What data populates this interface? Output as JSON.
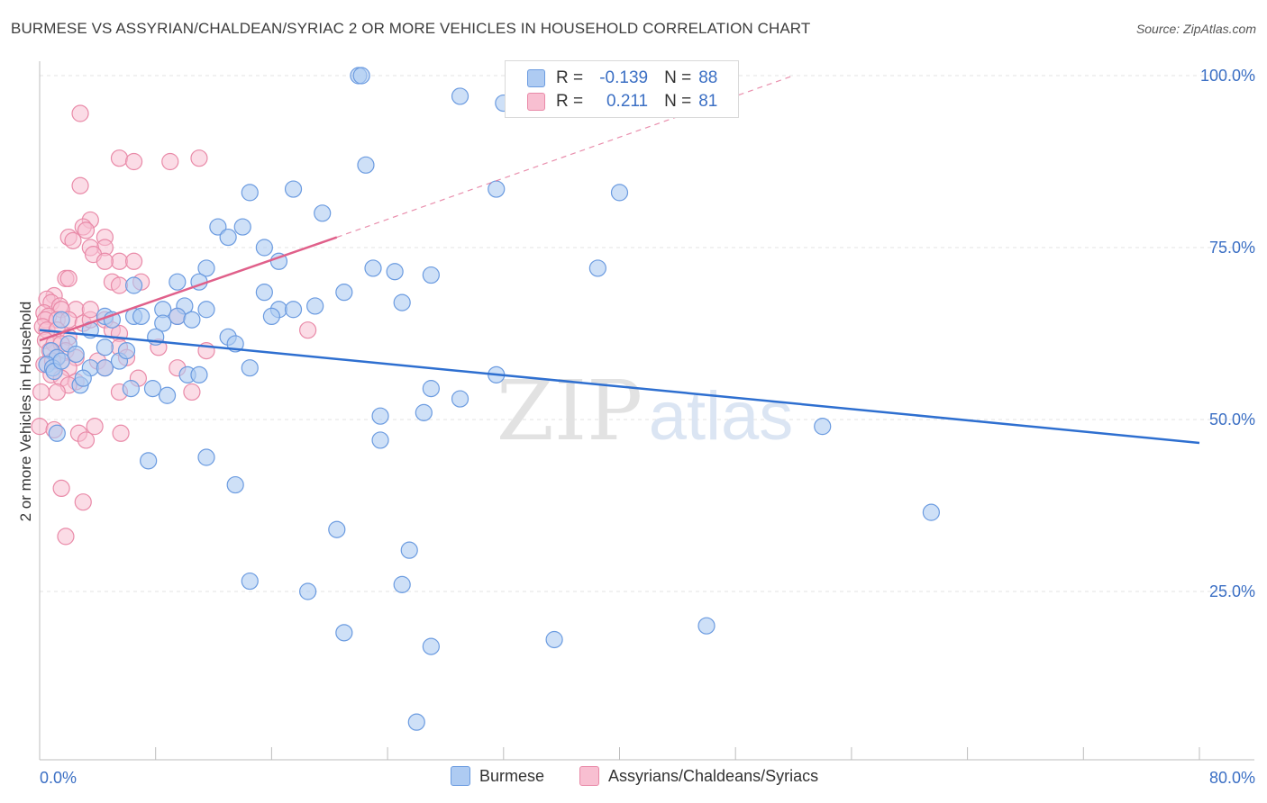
{
  "header": {
    "title": "BURMESE VS ASSYRIAN/CHALDEAN/SYRIAC 2 OR MORE VEHICLES IN HOUSEHOLD CORRELATION CHART",
    "source": "Source: ZipAtlas.com"
  },
  "watermark": {
    "zip": "ZIP",
    "atlas": "atlas"
  },
  "legend": {
    "r_label": "R =",
    "n_label": "N =",
    "burmese": {
      "r": "-0.139",
      "n": "88"
    },
    "assyrian": {
      "r": "0.211",
      "n": "81"
    }
  },
  "colors": {
    "burmese_fill": "#aecbf2",
    "burmese_stroke": "#6b9be0",
    "burmese_line": "#2e6fd0",
    "assyrian_fill": "#f8bfd1",
    "assyrian_stroke": "#e98aa8",
    "assyrian_line": "#e0608a",
    "axis_text": "#3b6fc4",
    "grid": "#e3e3e3"
  },
  "chart_data": {
    "type": "scatter",
    "title": "BURMESE VS ASSYRIAN/CHALDEAN/SYRIAC 2 OR MORE VEHICLES IN HOUSEHOLD CORRELATION CHART",
    "xlabel": "",
    "ylabel": "2 or more Vehicles in Household",
    "xlim": [
      0,
      80
    ],
    "ylim": [
      0,
      102
    ],
    "x_tick_labels": [
      "0.0%",
      "80.0%"
    ],
    "y_ticks": [
      25,
      50,
      75,
      100
    ],
    "y_tick_labels": [
      "25.0%",
      "50.0%",
      "75.0%",
      "100.0%"
    ],
    "grid": true,
    "series": [
      {
        "name": "Burmese",
        "r": -0.139,
        "n": 88,
        "trend": {
          "x": [
            0,
            80
          ],
          "y": [
            63.0,
            46.6
          ]
        },
        "points": [
          [
            22.0,
            100.0
          ],
          [
            22.2,
            100.0
          ],
          [
            29.0,
            97.0
          ],
          [
            32.0,
            96.0
          ],
          [
            22.5,
            87.0
          ],
          [
            31.5,
            83.5
          ],
          [
            14.5,
            83.0
          ],
          [
            17.5,
            83.5
          ],
          [
            40.0,
            83.0
          ],
          [
            19.5,
            80.0
          ],
          [
            12.3,
            78.0
          ],
          [
            14.0,
            78.0
          ],
          [
            13.0,
            76.5
          ],
          [
            15.5,
            75.0
          ],
          [
            16.5,
            73.0
          ],
          [
            11.5,
            72.0
          ],
          [
            23.0,
            72.0
          ],
          [
            24.5,
            71.5
          ],
          [
            27.0,
            71.0
          ],
          [
            38.5,
            72.0
          ],
          [
            6.5,
            69.5
          ],
          [
            9.5,
            70.0
          ],
          [
            11.0,
            70.0
          ],
          [
            15.5,
            68.5
          ],
          [
            21.0,
            68.5
          ],
          [
            19.0,
            66.5
          ],
          [
            25.0,
            67.0
          ],
          [
            8.5,
            66.0
          ],
          [
            10.0,
            66.5
          ],
          [
            11.5,
            66.0
          ],
          [
            16.5,
            66.0
          ],
          [
            17.5,
            66.0
          ],
          [
            6.5,
            65.0
          ],
          [
            7.0,
            65.0
          ],
          [
            9.5,
            65.0
          ],
          [
            10.5,
            64.5
          ],
          [
            16.0,
            65.0
          ],
          [
            4.5,
            65.0
          ],
          [
            5.0,
            64.5
          ],
          [
            8.5,
            64.0
          ],
          [
            1.5,
            64.5
          ],
          [
            3.5,
            63.0
          ],
          [
            13.0,
            62.0
          ],
          [
            13.5,
            61.0
          ],
          [
            8.0,
            62.0
          ],
          [
            2.0,
            61.0
          ],
          [
            0.8,
            60.0
          ],
          [
            1.2,
            59.0
          ],
          [
            4.5,
            60.5
          ],
          [
            2.5,
            59.5
          ],
          [
            5.5,
            58.5
          ],
          [
            0.5,
            58.0
          ],
          [
            0.9,
            57.5
          ],
          [
            1.0,
            57.0
          ],
          [
            3.5,
            57.5
          ],
          [
            4.5,
            57.5
          ],
          [
            14.5,
            57.5
          ],
          [
            10.2,
            56.5
          ],
          [
            11.0,
            56.5
          ],
          [
            31.5,
            56.5
          ],
          [
            2.8,
            55.0
          ],
          [
            6.3,
            54.5
          ],
          [
            7.8,
            54.5
          ],
          [
            8.8,
            53.5
          ],
          [
            27.0,
            54.5
          ],
          [
            29.0,
            53.0
          ],
          [
            26.5,
            51.0
          ],
          [
            1.2,
            48.0
          ],
          [
            23.5,
            50.5
          ],
          [
            54.0,
            49.0
          ],
          [
            23.5,
            47.0
          ],
          [
            7.5,
            44.0
          ],
          [
            11.5,
            44.5
          ],
          [
            13.5,
            40.5
          ],
          [
            61.5,
            36.5
          ],
          [
            20.5,
            34.0
          ],
          [
            25.5,
            31.0
          ],
          [
            14.5,
            26.5
          ],
          [
            18.5,
            25.0
          ],
          [
            25.0,
            26.0
          ],
          [
            46.0,
            20.0
          ],
          [
            21.0,
            19.0
          ],
          [
            35.5,
            18.0
          ],
          [
            27.0,
            17.0
          ],
          [
            26.0,
            6.0
          ],
          [
            1.5,
            58.5
          ],
          [
            3.0,
            56.0
          ],
          [
            6.0,
            60.0
          ]
        ]
      },
      {
        "name": "Assyrians/Chaldeans/Syriacs",
        "r": 0.211,
        "n": 81,
        "trend": {
          "x": [
            0,
            20.5
          ],
          "y": [
            61.5,
            76.5
          ]
        },
        "trend_extension": {
          "x": [
            20.5,
            52
          ],
          "y": [
            76.5,
            100
          ]
        },
        "points": [
          [
            2.8,
            94.5
          ],
          [
            5.5,
            88.0
          ],
          [
            6.5,
            87.5
          ],
          [
            9.0,
            87.5
          ],
          [
            11.0,
            88.0
          ],
          [
            2.8,
            84.0
          ],
          [
            3.5,
            79.0
          ],
          [
            3.0,
            78.0
          ],
          [
            3.2,
            77.5
          ],
          [
            2.0,
            76.5
          ],
          [
            4.5,
            76.5
          ],
          [
            2.3,
            76.0
          ],
          [
            4.5,
            75.0
          ],
          [
            3.5,
            75.0
          ],
          [
            3.7,
            74.0
          ],
          [
            5.5,
            73.0
          ],
          [
            4.5,
            73.0
          ],
          [
            6.5,
            73.0
          ],
          [
            1.8,
            70.5
          ],
          [
            2.0,
            70.5
          ],
          [
            5.0,
            70.0
          ],
          [
            7.0,
            70.0
          ],
          [
            5.5,
            69.5
          ],
          [
            1.0,
            68.0
          ],
          [
            0.5,
            67.5
          ],
          [
            0.8,
            67.0
          ],
          [
            1.4,
            66.5
          ],
          [
            2.5,
            66.0
          ],
          [
            1.5,
            66.0
          ],
          [
            0.3,
            65.5
          ],
          [
            0.6,
            65.0
          ],
          [
            0.4,
            64.5
          ],
          [
            1.2,
            64.5
          ],
          [
            2.0,
            64.5
          ],
          [
            3.0,
            64.0
          ],
          [
            3.5,
            64.5
          ],
          [
            4.5,
            64.5
          ],
          [
            9.5,
            65.0
          ],
          [
            0.2,
            63.5
          ],
          [
            0.5,
            63.0
          ],
          [
            1.2,
            63.0
          ],
          [
            2.0,
            62.0
          ],
          [
            5.0,
            63.0
          ],
          [
            5.5,
            62.5
          ],
          [
            18.5,
            63.0
          ],
          [
            0.4,
            61.5
          ],
          [
            1.0,
            61.0
          ],
          [
            1.5,
            61.0
          ],
          [
            0.7,
            60.0
          ],
          [
            1.8,
            60.0
          ],
          [
            5.5,
            60.5
          ],
          [
            11.5,
            60.0
          ],
          [
            1.2,
            59.0
          ],
          [
            2.5,
            59.0
          ],
          [
            4.0,
            58.5
          ],
          [
            6.0,
            59.0
          ],
          [
            0.3,
            58.0
          ],
          [
            2.0,
            57.5
          ],
          [
            4.5,
            57.5
          ],
          [
            9.5,
            57.5
          ],
          [
            0.8,
            56.5
          ],
          [
            1.5,
            56.0
          ],
          [
            2.5,
            55.5
          ],
          [
            2.0,
            55.0
          ],
          [
            0.1,
            54.0
          ],
          [
            1.2,
            54.0
          ],
          [
            5.5,
            54.0
          ],
          [
            10.5,
            54.0
          ],
          [
            0.0,
            49.0
          ],
          [
            1.0,
            48.5
          ],
          [
            3.8,
            49.0
          ],
          [
            5.6,
            48.0
          ],
          [
            2.7,
            48.0
          ],
          [
            3.2,
            47.0
          ],
          [
            1.5,
            40.0
          ],
          [
            3.0,
            38.0
          ],
          [
            1.8,
            33.0
          ],
          [
            8.2,
            60.5
          ],
          [
            3.5,
            66.0
          ],
          [
            0.9,
            58.5
          ],
          [
            6.8,
            56.0
          ]
        ]
      }
    ]
  }
}
